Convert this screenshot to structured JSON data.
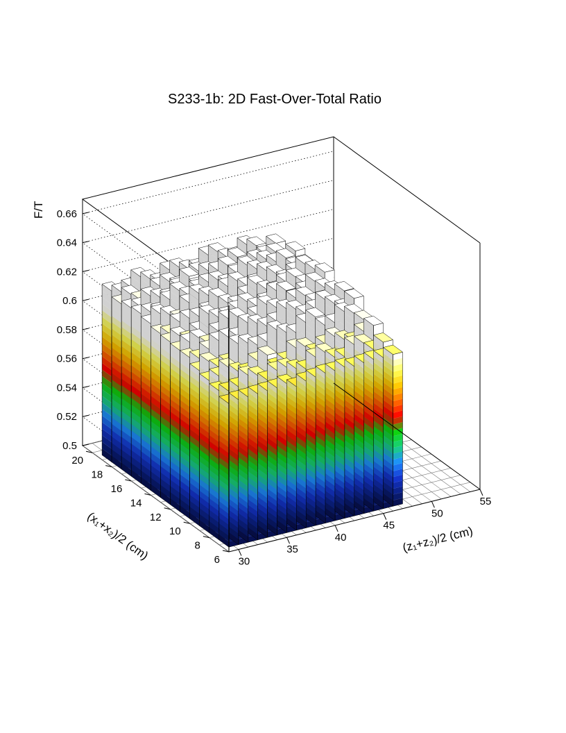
{
  "chart_data": {
    "type": "lego3d",
    "title": "S233-1b: 2D Fast-Over-Total Ratio",
    "zlabel": "F/T",
    "xlabel": "(z₁+z₂)/2 (cm)",
    "ylabel": "(x₁+x₂)/2 (cm)",
    "zlim": [
      0.5,
      0.67
    ],
    "xlim": [
      29,
      55
    ],
    "ylim": [
      6,
      21
    ],
    "z_ticks": [
      "0.5",
      "0.52",
      "0.54",
      "0.56",
      "0.58",
      "0.6",
      "0.62",
      "0.64",
      "0.66"
    ],
    "x_ticks": [
      "30",
      "35",
      "40",
      "45",
      "50",
      "55"
    ],
    "y_ticks": [
      "6",
      "8",
      "10",
      "12",
      "14",
      "16",
      "18",
      "20"
    ],
    "x_bin_range": [
      30,
      48
    ],
    "y_bin_range": [
      6.5,
      20
    ],
    "front_row": {
      "x": [
        30,
        31,
        32,
        33,
        34,
        35,
        36,
        37,
        38,
        39,
        40,
        41,
        42,
        43,
        44,
        45,
        46,
        47
      ],
      "values": [
        0.599,
        0.6,
        0.6,
        0.6,
        0.6,
        0.6,
        0.601,
        0.597,
        0.599,
        0.6,
        0.601,
        0.601,
        0.602,
        0.601,
        0.602,
        0.603,
        0.603,
        0.604
      ]
    },
    "left_column": {
      "y": [
        7,
        8,
        9,
        10,
        11,
        12,
        13,
        14,
        15,
        16,
        17,
        18,
        19
      ],
      "values": [
        0.599,
        0.603,
        0.605,
        0.607,
        0.611,
        0.611,
        0.612,
        0.613,
        0.615,
        0.617,
        0.616,
        0.614,
        0.618
      ]
    },
    "color_scale": [
      "#050837",
      "#0a1f7e",
      "#1536d3",
      "#1e8fff",
      "#19d27e",
      "#0fd20f",
      "#ff0000",
      "#ff6a00",
      "#ffc800",
      "#ffff5a",
      "#ffffff"
    ],
    "grid": true,
    "legend": "none"
  }
}
